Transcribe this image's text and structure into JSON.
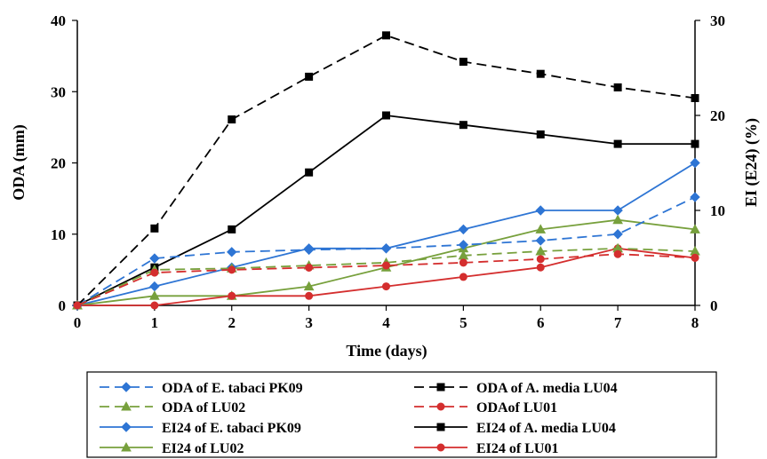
{
  "chart_data": {
    "type": "line",
    "xlabel": "Time (days)",
    "ylabel": "ODA (mm)",
    "y2label": "EI (E24) (%)",
    "x": [
      0,
      1,
      2,
      3,
      4,
      5,
      6,
      7,
      8
    ],
    "xlim": [
      0,
      8
    ],
    "ylim": [
      0,
      40
    ],
    "y2lim": [
      0,
      30
    ],
    "yticks": [
      0,
      10,
      20,
      30,
      40
    ],
    "y2ticks": [
      0,
      10,
      20,
      30
    ],
    "grid": false,
    "legend_position": "bottom",
    "series": [
      {
        "name": "ODA of E. tabaci PK09",
        "axis": "left",
        "style": "dashed",
        "marker": "diamond",
        "color": "#2E75D4",
        "values": [
          0,
          6.6,
          7.5,
          7.8,
          8.0,
          8.5,
          9.1,
          10.0,
          15.2
        ]
      },
      {
        "name": "ODA of A. media LU04",
        "axis": "left",
        "style": "dashed",
        "marker": "square",
        "color": "#000000",
        "values": [
          0,
          10.8,
          26.1,
          32.1,
          37.9,
          34.2,
          32.5,
          30.6,
          29.1
        ]
      },
      {
        "name": "ODA of LU02",
        "axis": "left",
        "style": "dashed",
        "marker": "triangle",
        "color": "#77A03C",
        "values": [
          0,
          5.0,
          5.2,
          5.6,
          6.0,
          7.0,
          7.6,
          8.0,
          7.6
        ]
      },
      {
        "name": "ODAof  LU01",
        "axis": "left",
        "style": "dashed",
        "marker": "circle",
        "color": "#D42E2E",
        "values": [
          0,
          4.6,
          5.0,
          5.3,
          5.6,
          6.0,
          6.5,
          7.2,
          6.7
        ]
      },
      {
        "name": "EI24 of E. tabaci PK09",
        "axis": "right",
        "style": "solid",
        "marker": "diamond",
        "color": "#2E75D4",
        "values": [
          0,
          2.0,
          4.0,
          6.0,
          6.0,
          8.0,
          10.0,
          10.0,
          15.0
        ]
      },
      {
        "name": "EI24 of A. media LU04",
        "axis": "right",
        "style": "solid",
        "marker": "square",
        "color": "#000000",
        "values": [
          0,
          4.0,
          8.0,
          14.0,
          20.0,
          19.0,
          18.0,
          17.0,
          17.0
        ]
      },
      {
        "name": "EI24 of LU02",
        "axis": "right",
        "style": "solid",
        "marker": "triangle",
        "color": "#77A03C",
        "values": [
          0,
          1.0,
          1.0,
          2.0,
          4.0,
          6.0,
          8.0,
          9.0,
          8.0
        ]
      },
      {
        "name": "EI24 of LU01",
        "axis": "right",
        "style": "solid",
        "marker": "circle",
        "color": "#D42E2E",
        "values": [
          0,
          0,
          1.0,
          1.0,
          2.0,
          3.0,
          4.0,
          6.0,
          5.0
        ]
      }
    ]
  }
}
